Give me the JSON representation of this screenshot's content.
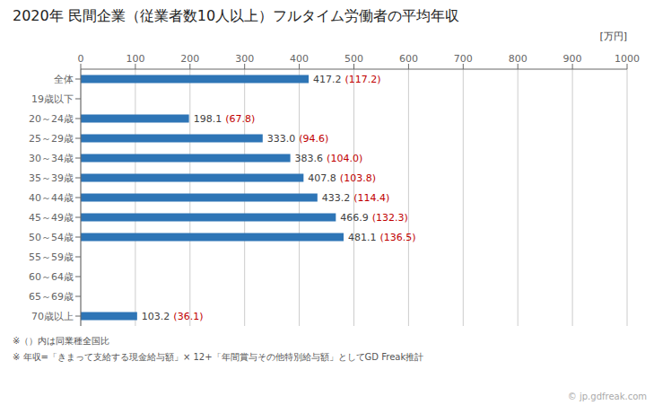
{
  "chart_data": {
    "type": "bar",
    "orientation": "horizontal",
    "title": "2020年 民間企業（従業者数10人以上）フルタイム労働者の平均年収",
    "xlabel": "[万円]",
    "categories": [
      "全体",
      "19歳以下",
      "20～24歳",
      "25～29歳",
      "30～34歳",
      "35～39歳",
      "40～44歳",
      "45～49歳",
      "50～54歳",
      "55～59歳",
      "60～64歳",
      "65～69歳",
      "70歳以上"
    ],
    "values": [
      417.2,
      0,
      198.1,
      333.0,
      383.6,
      407.8,
      433.2,
      466.9,
      481.1,
      0,
      0,
      0,
      103.2
    ],
    "data_labels": true,
    "value_labels": [
      "417.2",
      null,
      "198.1",
      "333.0",
      "383.6",
      "407.8",
      "433.2",
      "466.9",
      "481.1",
      null,
      null,
      null,
      "103.2"
    ],
    "ratio_labels": [
      "(117.2)",
      null,
      "(67.8)",
      "(94.6)",
      "(104.0)",
      "(103.8)",
      "(114.4)",
      "(132.3)",
      "(136.5)",
      null,
      null,
      null,
      "(36.1)"
    ],
    "color": "#2e75b6",
    "xlim": [
      0,
      1000
    ],
    "xticks": [
      0,
      100,
      200,
      300,
      400,
      500,
      600,
      700,
      800,
      900,
      1000
    ],
    "grid": true,
    "annotations": [
      "※（）内は同業種全国比",
      "※ 年収=「きまって支給する現金給与額」× 12+「年間賞与その他特別給与額」としてGD Freak推計",
      "© jp.gdfreak.com"
    ]
  }
}
